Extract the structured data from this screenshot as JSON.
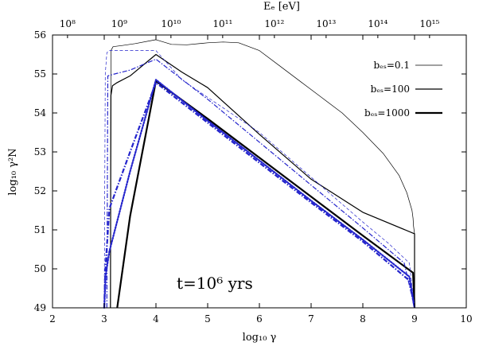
{
  "chart_data": {
    "type": "line",
    "xlabel": "log₁₀ γ",
    "ylabel": "log₁₀ γ²N",
    "top_xlabel": "Eₑ [eV]",
    "xlim": [
      2,
      10
    ],
    "ylim": [
      49,
      56
    ],
    "x_ticks": [
      "2",
      "3",
      "4",
      "5",
      "6",
      "7",
      "8",
      "9",
      "10"
    ],
    "y_ticks": [
      "49",
      "50",
      "51",
      "52",
      "53",
      "54",
      "55",
      "56"
    ],
    "top_ticks": [
      {
        "value": 8,
        "label": "10⁸"
      },
      {
        "value": 9,
        "label": "10⁹"
      },
      {
        "value": 10,
        "label": "10¹⁰"
      },
      {
        "value": 11,
        "label": "10¹¹"
      },
      {
        "value": 12,
        "label": "10¹²"
      },
      {
        "value": 13,
        "label": "10¹³"
      },
      {
        "value": 14,
        "label": "10¹⁴"
      },
      {
        "value": 15,
        "label": "10¹⁵"
      }
    ],
    "top_axis_note": "log10(Ee/eV) = log10 γ + 5.71",
    "grid": false,
    "legend_placement": "top-right",
    "annotation": "t=10⁶ yrs",
    "series": [
      {
        "name": "bₑₛ=0.1",
        "color": "#000000",
        "style": "solid",
        "weight": "thin",
        "x": [
          3.12,
          3.13,
          3.17,
          3.35,
          3.6,
          4.0,
          4.3,
          4.6,
          5.0,
          5.3,
          5.6,
          6.0,
          6.4,
          6.8,
          7.2,
          7.6,
          8.0,
          8.4,
          8.7,
          8.85,
          8.95,
          8.97,
          8.98,
          9.0,
          9.0
        ],
        "y": [
          49.0,
          55.6,
          55.7,
          55.73,
          55.78,
          55.88,
          55.76,
          55.75,
          55.8,
          55.82,
          55.8,
          55.6,
          55.2,
          54.8,
          54.4,
          54.0,
          53.5,
          52.95,
          52.4,
          51.95,
          51.5,
          51.3,
          51.1,
          50.9,
          49.0
        ]
      },
      {
        "name": "bₑₛ=100",
        "color": "#000000",
        "style": "solid",
        "weight": "medium",
        "x": [
          3.12,
          3.13,
          3.16,
          3.25,
          3.5,
          4.0,
          4.5,
          5.0,
          5.5,
          6.0,
          7.0,
          8.0,
          9.0,
          9.0
        ],
        "y": [
          49.0,
          54.45,
          54.7,
          54.78,
          54.95,
          55.5,
          55.05,
          54.65,
          54.05,
          53.45,
          52.3,
          51.45,
          50.9,
          49.0
        ]
      },
      {
        "name": "bₑₛ=1000",
        "color": "#000000",
        "style": "solid",
        "weight": "thick",
        "x": [
          3.25,
          3.5,
          4.0,
          5.0,
          6.0,
          7.0,
          8.0,
          8.97,
          9.0
        ],
        "y": [
          49.0,
          51.35,
          54.82,
          53.85,
          52.85,
          51.85,
          50.85,
          49.9,
          49.0
        ]
      },
      {
        "name": "",
        "color": "#2424cc",
        "style": "dashed",
        "weight": "thin",
        "x": [
          3.0,
          3.02,
          3.05,
          3.1,
          3.5,
          4.0,
          4.5,
          5.0,
          6.0,
          7.0,
          8.0,
          8.5,
          8.9,
          9.0
        ],
        "y": [
          49.0,
          55.0,
          55.55,
          55.6,
          55.6,
          55.6,
          54.85,
          54.4,
          53.5,
          52.35,
          51.2,
          50.65,
          50.15,
          49.0
        ]
      },
      {
        "name": "",
        "color": "#2424cc",
        "style": "dashdot",
        "weight": "medium",
        "x": [
          3.05,
          3.07,
          3.2,
          3.5,
          4.0,
          5.0,
          6.0,
          7.0,
          8.0,
          8.8,
          9.0
        ],
        "y": [
          49.0,
          54.95,
          55.0,
          55.1,
          55.38,
          54.35,
          53.25,
          52.15,
          51.05,
          50.15,
          49.0
        ]
      },
      {
        "name": "",
        "color": "#2424cc",
        "style": "dotted",
        "weight": "thick",
        "x": [
          3.0,
          3.03,
          3.1,
          3.5,
          4.0,
          5.0,
          6.0,
          7.0,
          8.0,
          8.9,
          9.0
        ],
        "y": [
          49.0,
          49.85,
          50.45,
          52.5,
          54.85,
          53.8,
          52.78,
          51.75,
          50.75,
          49.8,
          49.0
        ]
      },
      {
        "name": "",
        "color": "#2424cc",
        "style": "dashdot",
        "weight": "thick",
        "x": [
          3.0,
          3.02,
          3.1,
          3.5,
          4.0,
          5.0,
          6.0,
          7.0,
          8.0,
          8.9,
          9.0
        ],
        "y": [
          49.0,
          49.95,
          51.55,
          53.0,
          54.78,
          53.75,
          52.72,
          51.7,
          50.7,
          49.7,
          49.0
        ]
      }
    ]
  }
}
